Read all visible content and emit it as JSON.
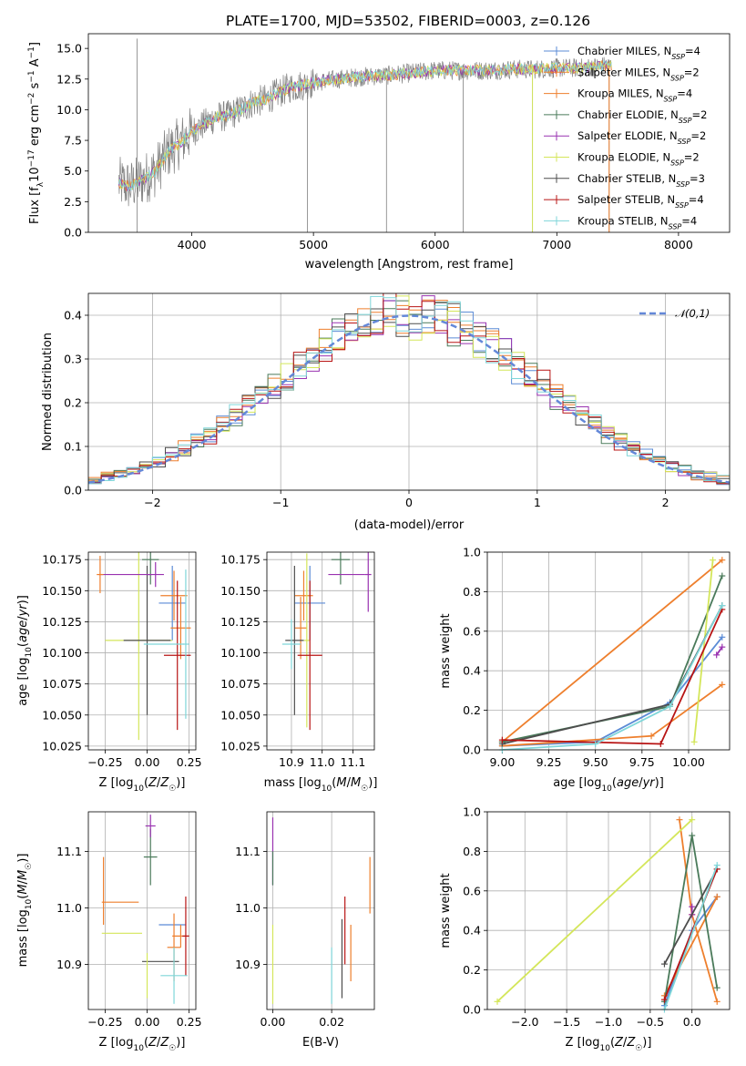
{
  "figure": {
    "title": "PLATE=1700, MJD=53502, FIBERID=0003, z=0.126"
  },
  "series": [
    {
      "name": "Chabrier MILES",
      "legend": "Chabrier MILES, N_SSP=4",
      "nssp": "4",
      "color": "#5b8bd6"
    },
    {
      "name": "Salpeter MILES",
      "legend": "Salpeter MILES, N_SSP=2",
      "nssp": "2",
      "color": "#ee7f2d"
    },
    {
      "name": "Kroupa MILES",
      "legend": "Kroupa MILES, N_SSP=4",
      "nssp": "4",
      "color": "#ee7f2d"
    },
    {
      "name": "Chabrier ELODIE",
      "legend": "Chabrier ELODIE, N_SSP=2",
      "nssp": "2",
      "color": "#4a7a5a"
    },
    {
      "name": "Salpeter ELODIE",
      "legend": "Salpeter ELODIE, N_SSP=2",
      "nssp": "2",
      "color": "#9932b0"
    },
    {
      "name": "Kroupa ELODIE",
      "legend": "Kroupa ELODIE, N_SSP=2",
      "nssp": "2",
      "color": "#d4e65a"
    },
    {
      "name": "Chabrier STELIB",
      "legend": "Chabrier STELIB, N_SSP=3",
      "nssp": "3",
      "color": "#4d4d4d"
    },
    {
      "name": "Salpeter STELIB",
      "legend": "Salpeter STELIB, N_SSP=4",
      "nssp": "4",
      "color": "#b81414"
    },
    {
      "name": "Kroupa STELIB",
      "legend": "Kroupa STELIB, N_SSP=4",
      "nssp": "4",
      "color": "#7fd6d9"
    }
  ],
  "chart_data": [
    {
      "id": "spectrum",
      "type": "line",
      "xlabel": "wavelength [Angstrom, rest frame]",
      "ylabel": "Flux [f_λ 10^-17 erg cm^-2 s^-1 A^-1]",
      "xlim": [
        3150,
        8420
      ],
      "ylim": [
        0,
        16.2
      ],
      "xticks": [
        4000,
        5000,
        6000,
        7000,
        8000
      ],
      "yticks": [
        0.0,
        2.5,
        5.0,
        7.5,
        10.0,
        12.5,
        15.0
      ],
      "grid": false,
      "legend": "upper right",
      "observed_continuum": {
        "x": [
          3400,
          3500,
          3600,
          3700,
          3800,
          3900,
          4000,
          4100,
          4200,
          4300,
          4400,
          4500,
          4600,
          4700,
          4800,
          4900,
          5000,
          5200,
          5400,
          5600,
          5800,
          6000,
          6200,
          6400,
          6600,
          6800,
          7000,
          7200,
          7400
        ],
        "y": [
          4.0,
          3.8,
          4.3,
          5.0,
          6.5,
          7.3,
          8.2,
          8.8,
          9.4,
          9.5,
          10.0,
          10.6,
          10.8,
          11.3,
          11.8,
          12.0,
          12.2,
          12.5,
          12.7,
          12.8,
          13.0,
          13.2,
          13.2,
          13.2,
          13.3,
          13.3,
          13.4,
          13.4,
          13.6
        ]
      },
      "artifacts": [
        {
          "x": 3550,
          "y_low": 0,
          "y_high": 15.8
        },
        {
          "x": 4950,
          "y_low": 0,
          "y_high": 12.5
        },
        {
          "x": 5600,
          "y_low": 0,
          "y_high": 12.8
        },
        {
          "x": 6230,
          "y_low": 0,
          "y_high": 13.2
        },
        {
          "x": 6800,
          "y_low": 0,
          "y_high": 13.3
        },
        {
          "x": 7430,
          "y_low": 0,
          "y_high": 13.6
        }
      ]
    },
    {
      "id": "residuals",
      "type": "histogram",
      "xlabel": "(data-model)/error",
      "ylabel": "Normed distribution",
      "xlim": [
        -2.5,
        2.5
      ],
      "ylim": [
        0,
        0.45
      ],
      "xticks": [
        -2,
        -1,
        0,
        1,
        2
      ],
      "yticks": [
        0.0,
        0.1,
        0.2,
        0.3,
        0.4
      ],
      "grid": true,
      "reference_curve": {
        "name": "𝒩(0,1)",
        "mean": 0,
        "sigma": 1
      },
      "legend": "upper right"
    },
    {
      "id": "age-vs-Z",
      "type": "errorbar",
      "xlabel": "Z [log10(Z/Z☉)]",
      "ylabel": "age [log10(age/yr)]",
      "xlim": [
        -0.35,
        0.29
      ],
      "ylim": [
        10.022,
        10.181
      ],
      "xticks": [
        -0.25,
        0.0,
        0.25
      ],
      "yticks": [
        10.025,
        10.05,
        10.075,
        10.1,
        10.125,
        10.15,
        10.175
      ],
      "grid": true,
      "points": [
        {
          "series": 0,
          "x": 0.15,
          "xerr": 0.08,
          "y": 10.14,
          "yerr": 0.03
        },
        {
          "series": 1,
          "x": 0.16,
          "xerr": 0.08,
          "y": 10.146,
          "yerr": 0.02
        },
        {
          "series": 2,
          "x": 0.2,
          "xerr": 0.06,
          "y": 10.12,
          "yerr": 0.025
        },
        {
          "series": 3,
          "x": 0.02,
          "xerr": 0.05,
          "y": 10.175,
          "yerr": 0.02
        },
        {
          "series": 4,
          "x": 0.05,
          "xerr": 0.05,
          "y": 10.163,
          "yerr": 0.01
        },
        {
          "series": 5,
          "x": -0.05,
          "xerr": 0.2,
          "y": 10.11,
          "yerr": 0.08
        },
        {
          "series": 6,
          "x": 0.0,
          "xerr": 0.14,
          "y": 10.11,
          "yerr": 0.06
        },
        {
          "series": 7,
          "x": 0.18,
          "xerr": 0.08,
          "y": 10.098,
          "yerr": 0.06
        },
        {
          "series": 8,
          "x": 0.23,
          "xerr": 0.02,
          "y": 10.107,
          "yerr": 0.06
        },
        {
          "series": 8,
          "x": 0.1,
          "xerr": 0.12,
          "y": 10.107,
          "yerr": 0.0
        },
        {
          "series": 4,
          "x": -0.13,
          "xerr": 0.16,
          "y": 10.163,
          "yerr": 0.0
        },
        {
          "series": 1,
          "x": -0.28,
          "xerr": 0.02,
          "y": 10.163,
          "yerr": 0.015
        }
      ]
    },
    {
      "id": "age-vs-mass",
      "type": "errorbar",
      "xlabel": "mass [log10(M/M☉)]",
      "ylabel": "",
      "xlim": [
        10.82,
        11.17
      ],
      "ylim": [
        10.022,
        10.181
      ],
      "xticks": [
        10.9,
        11.0,
        11.1
      ],
      "yticks": [
        10.025,
        10.05,
        10.075,
        10.1,
        10.125,
        10.15,
        10.175
      ],
      "grid": true,
      "points": [
        {
          "series": 0,
          "x": 10.96,
          "xerr": 0.05,
          "y": 10.14,
          "yerr": 0.03
        },
        {
          "series": 1,
          "x": 10.94,
          "xerr": 0.03,
          "y": 10.146,
          "yerr": 0.02
        },
        {
          "series": 2,
          "x": 10.93,
          "xerr": 0.02,
          "y": 10.12,
          "yerr": 0.025
        },
        {
          "series": 3,
          "x": 11.06,
          "xerr": 0.03,
          "y": 10.175,
          "yerr": 0.02
        },
        {
          "series": 4,
          "x": 11.15,
          "xerr": 0.01,
          "y": 10.163,
          "yerr": 0.03
        },
        {
          "series": 5,
          "x": 10.95,
          "xerr": 0.01,
          "y": 10.11,
          "yerr": 0.07
        },
        {
          "series": 6,
          "x": 10.91,
          "xerr": 0.03,
          "y": 10.11,
          "yerr": 0.06
        },
        {
          "series": 7,
          "x": 10.96,
          "xerr": 0.04,
          "y": 10.098,
          "yerr": 0.06
        },
        {
          "series": 8,
          "x": 10.9,
          "xerr": 0.03,
          "y": 10.107,
          "yerr": 0.02
        },
        {
          "series": 4,
          "x": 11.08,
          "xerr": 0.06,
          "y": 10.163,
          "yerr": 0.0
        }
      ]
    },
    {
      "id": "massweight-vs-age",
      "type": "line",
      "xlabel": "age [log10(age/yr)]",
      "ylabel": "mass weight",
      "xlim": [
        8.92,
        10.22
      ],
      "ylim": [
        0,
        1
      ],
      "xticks": [
        9.0,
        9.25,
        9.5,
        9.75,
        10.0
      ],
      "yticks": [
        0.0,
        0.2,
        0.4,
        0.6,
        0.8,
        1.0
      ],
      "grid": true,
      "lines": [
        {
          "series": 0,
          "x": [
            9.0,
            9.5,
            9.9,
            10.18
          ],
          "y": [
            0.02,
            0.04,
            0.24,
            0.57
          ]
        },
        {
          "series": 1,
          "x": [
            9.0,
            10.18
          ],
          "y": [
            0.04,
            0.96
          ]
        },
        {
          "series": 2,
          "x": [
            9.0,
            9.8,
            10.18
          ],
          "y": [
            0.02,
            0.07,
            0.33
          ]
        },
        {
          "series": 3,
          "x": [
            9.0,
            9.9,
            10.18
          ],
          "y": [
            0.04,
            0.22,
            0.88
          ]
        },
        {
          "series": 4,
          "x": [
            10.15,
            10.18
          ],
          "y": [
            0.48,
            0.52
          ]
        },
        {
          "series": 5,
          "x": [
            10.03,
            10.13
          ],
          "y": [
            0.04,
            0.96
          ]
        },
        {
          "series": 6,
          "x": [
            9.0,
            9.9,
            10.18
          ],
          "y": [
            0.03,
            0.23,
            0.73
          ]
        },
        {
          "series": 7,
          "x": [
            9.0,
            9.85,
            10.18
          ],
          "y": [
            0.05,
            0.03,
            0.71
          ]
        },
        {
          "series": 8,
          "x": [
            9.0,
            9.5,
            9.9,
            10.18
          ],
          "y": [
            0.0,
            0.03,
            0.22,
            0.73
          ]
        }
      ]
    },
    {
      "id": "mass-vs-Z",
      "type": "errorbar",
      "xlabel": "Z [log10(Z/Z☉)]",
      "ylabel": "mass [log10(M/M☉)]",
      "xlim": [
        -0.35,
        0.29
      ],
      "ylim": [
        10.82,
        11.17
      ],
      "xticks": [
        -0.25,
        0.0,
        0.25
      ],
      "yticks": [
        10.9,
        11.0,
        11.1
      ],
      "grid": true,
      "points": [
        {
          "series": 0,
          "x": 0.15,
          "xerr": 0.08,
          "y": 10.97,
          "yerr": 0.0
        },
        {
          "series": 1,
          "x": 0.16,
          "xerr": 0.04,
          "y": 10.93,
          "yerr": 0.06
        },
        {
          "series": 2,
          "x": 0.2,
          "xerr": 0.05,
          "y": 10.95,
          "yerr": 0.02
        },
        {
          "series": 3,
          "x": 0.02,
          "xerr": 0.04,
          "y": 11.09,
          "yerr": 0.05
        },
        {
          "series": 4,
          "x": 0.02,
          "xerr": 0.03,
          "y": 11.145,
          "yerr": 0.02
        },
        {
          "series": 5,
          "x": -0.15,
          "xerr": 0.12,
          "y": 10.955,
          "yerr": 0.0
        },
        {
          "series": 6,
          "x": 0.08,
          "xerr": 0.11,
          "y": 10.905,
          "yerr": 0.0
        },
        {
          "series": 7,
          "x": 0.23,
          "xerr": 0.02,
          "y": 10.95,
          "yerr": 0.07
        },
        {
          "series": 8,
          "x": 0.16,
          "xerr": 0.08,
          "y": 10.88,
          "yerr": 0.05
        },
        {
          "series": 1,
          "x": -0.16,
          "xerr": 0.11,
          "y": 11.01,
          "yerr": 0.0
        },
        {
          "series": 1,
          "x": -0.26,
          "xerr": 0.0,
          "y": 11.03,
          "yerr": 0.06
        },
        {
          "series": 5,
          "x": 0.0,
          "xerr": 0.0,
          "y": 10.88,
          "yerr": 0.04
        }
      ]
    },
    {
      "id": "mass-vs-ebv",
      "type": "errorbar",
      "xlabel": "E(B-V)",
      "ylabel": "",
      "xlim": [
        -0.002,
        0.0345
      ],
      "ylim": [
        10.82,
        11.17
      ],
      "xticks": [
        0.0,
        0.02
      ],
      "yticks": [
        10.9,
        11.0,
        11.1
      ],
      "grid": true,
      "points": [
        {
          "series": 4,
          "x": 0.0,
          "xerr": 0.0,
          "y": 11.1,
          "yerr": 0.06
        },
        {
          "series": 3,
          "x": 0.0,
          "xerr": 0.0,
          "y": 11.07,
          "yerr": 0.03
        },
        {
          "series": 5,
          "x": 0.0,
          "xerr": 0.0,
          "y": 10.9,
          "yerr": 0.07
        },
        {
          "series": 1,
          "x": 0.033,
          "xerr": 0.0,
          "y": 11.04,
          "yerr": 0.05
        },
        {
          "series": 6,
          "x": 0.0235,
          "xerr": 0.0,
          "y": 10.91,
          "yerr": 0.07
        },
        {
          "series": 7,
          "x": 0.0245,
          "xerr": 0.0,
          "y": 10.96,
          "yerr": 0.06
        },
        {
          "series": 2,
          "x": 0.0265,
          "xerr": 0.0,
          "y": 10.92,
          "yerr": 0.05
        },
        {
          "series": 8,
          "x": 0.02,
          "xerr": 0.0,
          "y": 10.88,
          "yerr": 0.05
        }
      ]
    },
    {
      "id": "massweight-vs-Z",
      "type": "line",
      "xlabel": "Z [log10(Z/Z☉)]",
      "ylabel": "mass weight",
      "xlim": [
        -2.45,
        0.45
      ],
      "ylim": [
        0,
        1
      ],
      "xticks": [
        -2.0,
        -1.5,
        -1.0,
        -0.5,
        0.0
      ],
      "yticks": [
        0.0,
        0.2,
        0.4,
        0.6,
        0.8,
        1.0
      ],
      "grid": true,
      "lines": [
        {
          "series": 0,
          "x": [
            -0.33,
            0.0,
            0.3
          ],
          "y": [
            0.02,
            0.4,
            0.57
          ]
        },
        {
          "series": 1,
          "x": [
            -0.15,
            0.0,
            0.3
          ],
          "y": [
            0.96,
            0.48,
            0.04
          ]
        },
        {
          "series": 2,
          "x": [
            -0.33,
            0.3
          ],
          "y": [
            0.07,
            0.57
          ]
        },
        {
          "series": 3,
          "x": [
            -0.33,
            0.0,
            0.3
          ],
          "y": [
            0.04,
            0.88,
            0.11
          ]
        },
        {
          "series": 4,
          "x": [
            0.0,
            0.0
          ],
          "y": [
            0.48,
            0.52
          ]
        },
        {
          "series": 5,
          "x": [
            -2.33,
            0.0
          ],
          "y": [
            0.04,
            0.96
          ]
        },
        {
          "series": 6,
          "x": [
            -0.33,
            0.3
          ],
          "y": [
            0.23,
            0.71
          ]
        },
        {
          "series": 7,
          "x": [
            -0.33,
            0.3
          ],
          "y": [
            0.05,
            0.71
          ]
        },
        {
          "series": 8,
          "x": [
            -0.33,
            0.3
          ],
          "y": [
            0.0,
            0.73
          ]
        }
      ]
    }
  ]
}
